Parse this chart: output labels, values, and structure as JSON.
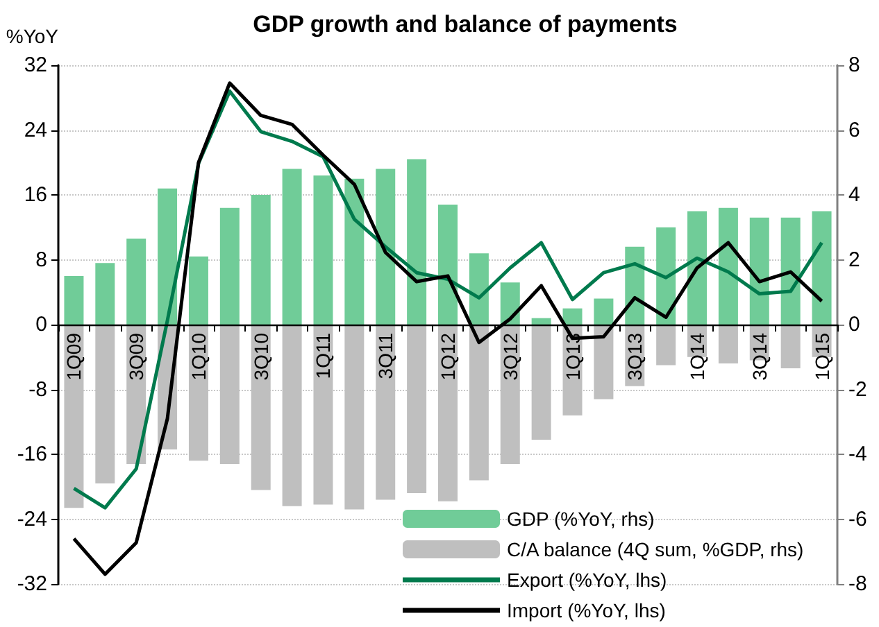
{
  "chart_data": {
    "type": "bar",
    "title": "GDP growth and balance of payments",
    "ylabel": "%YoY",
    "categories": [
      "1Q09",
      null,
      "3Q09",
      null,
      "1Q10",
      null,
      "3Q10",
      null,
      "1Q11",
      null,
      "3Q11",
      null,
      "1Q12",
      null,
      "3Q12",
      null,
      "1Q13",
      null,
      "3Q13",
      null,
      "1Q14",
      null,
      "3Q14",
      null,
      "1Q15"
    ],
    "series": [
      {
        "name": "GDP (%YoY, rhs)",
        "axis": "y2",
        "color": "#70cc98",
        "values": [
          1.5,
          1.9,
          2.65,
          4.2,
          2.1,
          3.6,
          4.0,
          4.8,
          4.6,
          4.5,
          4.8,
          5.1,
          3.7,
          2.2,
          1.3,
          0.2,
          0.5,
          0.8,
          2.4,
          3.0,
          3.5,
          3.6,
          3.3,
          3.3,
          3.5
        ]
      },
      {
        "name": "C/A balance (4Q sum, %GDP, rhs)",
        "axis": "y2",
        "color": "#bfbfbf",
        "values": [
          -5.65,
          -4.9,
          -4.3,
          -3.85,
          -4.2,
          -4.3,
          -5.1,
          -5.6,
          -5.55,
          -5.7,
          -5.4,
          -5.2,
          -5.45,
          -4.8,
          -4.3,
          -3.55,
          -2.8,
          -2.3,
          -1.9,
          -1.25,
          -1.0,
          -1.2,
          -1.1,
          -1.35,
          -1.0
        ]
      },
      {
        "name": "Export (%YoY, lhs)",
        "type": "line",
        "color": "#007a4d",
        "values": [
          -20.2,
          -22.6,
          -17.8,
          0.5,
          19.9,
          28.8,
          23.8,
          22.6,
          20.7,
          13,
          9.6,
          6.4,
          5.6,
          3.3,
          7.0,
          10.1,
          3.1,
          6.4,
          7.5,
          5.8,
          8.2,
          6.5,
          3.8,
          4.1,
          10.1
        ]
      },
      {
        "name": "Import (%YoY, lhs)",
        "type": "line",
        "color": "#000000",
        "values": [
          -26.4,
          -30.8,
          -26.9,
          -11.6,
          20,
          29.8,
          25.8,
          24.7,
          20.9,
          17.3,
          8.9,
          5.3,
          6.0,
          -2.2,
          0.7,
          4.8,
          -1.7,
          -1.5,
          3.3,
          0.9,
          7.0,
          10.1,
          5.3,
          6.5,
          2.9
        ]
      }
    ],
    "ylim": [
      -32,
      32
    ],
    "yticks": [
      -32,
      -24,
      -16,
      -8,
      0,
      8,
      16,
      24,
      32
    ],
    "y2lim": [
      -8,
      8
    ],
    "y2ticks": [
      -8,
      -6,
      -4,
      -2,
      0,
      2,
      4,
      6,
      8
    ],
    "stacked": true,
    "grid": "y",
    "legend": "bottom right",
    "marker": "none"
  }
}
